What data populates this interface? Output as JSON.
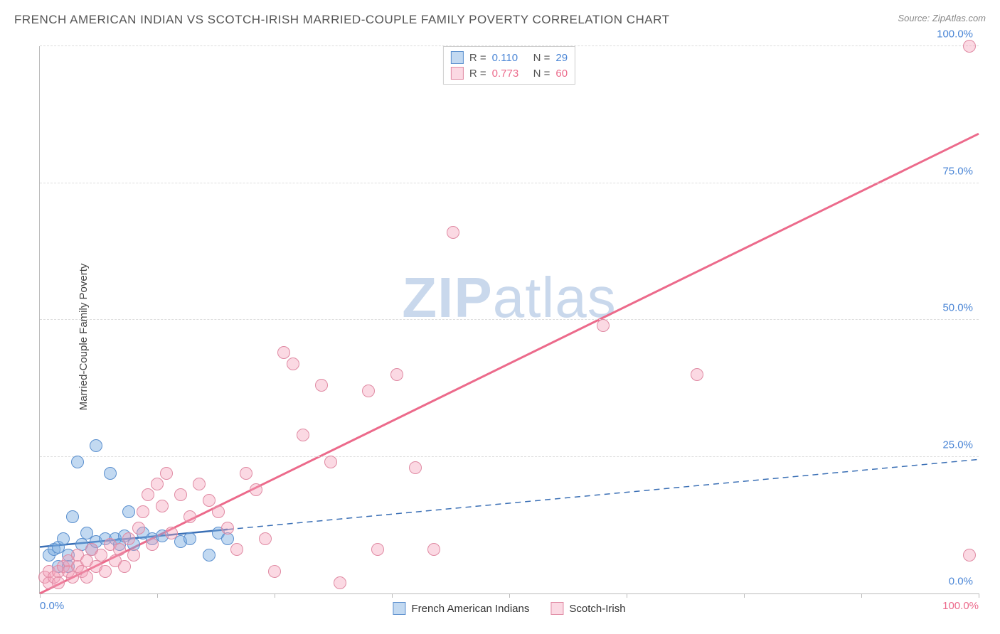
{
  "title": "FRENCH AMERICAN INDIAN VS SCOTCH-IRISH MARRIED-COUPLE FAMILY POVERTY CORRELATION CHART",
  "source": "Source: ZipAtlas.com",
  "ylabel": "Married-Couple Family Poverty",
  "watermark": {
    "bold": "ZIP",
    "rest": "atlas",
    "color": "#c9d8ec"
  },
  "chart": {
    "type": "scatter",
    "xlim": [
      0,
      100
    ],
    "ylim": [
      0,
      100
    ],
    "yticks": [
      {
        "v": 0,
        "label": "0.0%",
        "color": "#4b86d6"
      },
      {
        "v": 25,
        "label": "25.0%",
        "color": "#4b86d6"
      },
      {
        "v": 50,
        "label": "50.0%",
        "color": "#4b86d6"
      },
      {
        "v": 75,
        "label": "75.0%",
        "color": "#4b86d6"
      },
      {
        "v": 100,
        "label": "100.0%",
        "color": "#4b86d6"
      }
    ],
    "xticks": [
      0,
      12.5,
      25,
      37.5,
      50,
      62.5,
      75,
      87.5,
      100
    ],
    "xtick_labels": [
      {
        "v": 0,
        "label": "0.0%",
        "color": "#4b86d6"
      },
      {
        "v": 100,
        "label": "100.0%",
        "color": "#ec6a8b"
      }
    ],
    "background_color": "#ffffff",
    "grid_color": "#dddddd",
    "axis_color": "#bbbbbb"
  },
  "series": [
    {
      "key": "french_american_indians",
      "label": "French American Indians",
      "fill": "rgba(120,170,225,0.45)",
      "stroke": "#5a8fce",
      "marker_radius": 9,
      "stats": {
        "R": "0.110",
        "N": "29",
        "value_color": "#4b86d6"
      },
      "trendline": {
        "color": "#3a6fb5",
        "width": 2.5,
        "dash_after": 20,
        "x1": 0,
        "y1": 8.5,
        "x2": 100,
        "y2": 24.5
      },
      "points": [
        [
          1,
          7
        ],
        [
          1.5,
          8
        ],
        [
          2,
          5
        ],
        [
          2,
          8.5
        ],
        [
          2.5,
          10
        ],
        [
          3,
          7
        ],
        [
          3.5,
          14
        ],
        [
          3,
          5
        ],
        [
          4,
          24
        ],
        [
          4.5,
          9
        ],
        [
          5,
          11
        ],
        [
          5.5,
          8
        ],
        [
          6,
          27
        ],
        [
          6,
          9.5
        ],
        [
          7,
          10
        ],
        [
          7.5,
          22
        ],
        [
          8,
          10
        ],
        [
          8.5,
          9
        ],
        [
          9,
          10.5
        ],
        [
          9.5,
          15
        ],
        [
          10,
          9
        ],
        [
          11,
          11
        ],
        [
          12,
          10
        ],
        [
          13,
          10.5
        ],
        [
          15,
          9.5
        ],
        [
          16,
          10
        ],
        [
          18,
          7
        ],
        [
          19,
          11
        ],
        [
          20,
          10
        ]
      ]
    },
    {
      "key": "scotch_irish",
      "label": "Scotch-Irish",
      "fill": "rgba(245,160,185,0.40)",
      "stroke": "#e08aa3",
      "marker_radius": 9,
      "stats": {
        "R": "0.773",
        "N": "60",
        "value_color": "#ec6a8b"
      },
      "trendline": {
        "color": "#ec6a8b",
        "width": 3,
        "dash_after": null,
        "x1": 0,
        "y1": 0,
        "x2": 100,
        "y2": 84
      },
      "points": [
        [
          0.5,
          3
        ],
        [
          1,
          2
        ],
        [
          1,
          4
        ],
        [
          1.5,
          3
        ],
        [
          2,
          4
        ],
        [
          2,
          2
        ],
        [
          2.5,
          5
        ],
        [
          3,
          4
        ],
        [
          3,
          6
        ],
        [
          3.5,
          3
        ],
        [
          4,
          5
        ],
        [
          4,
          7
        ],
        [
          4.5,
          4
        ],
        [
          5,
          6
        ],
        [
          5,
          3
        ],
        [
          5.5,
          8
        ],
        [
          6,
          5
        ],
        [
          6.5,
          7
        ],
        [
          7,
          4
        ],
        [
          7.5,
          9
        ],
        [
          8,
          6
        ],
        [
          8.5,
          8
        ],
        [
          9,
          5
        ],
        [
          9.5,
          10
        ],
        [
          10,
          7
        ],
        [
          10.5,
          12
        ],
        [
          11,
          15
        ],
        [
          11.5,
          18
        ],
        [
          12,
          9
        ],
        [
          12.5,
          20
        ],
        [
          13,
          16
        ],
        [
          13.5,
          22
        ],
        [
          14,
          11
        ],
        [
          15,
          18
        ],
        [
          16,
          14
        ],
        [
          17,
          20
        ],
        [
          18,
          17
        ],
        [
          19,
          15
        ],
        [
          20,
          12
        ],
        [
          21,
          8
        ],
        [
          22,
          22
        ],
        [
          23,
          19
        ],
        [
          24,
          10
        ],
        [
          25,
          4
        ],
        [
          26,
          44
        ],
        [
          27,
          42
        ],
        [
          28,
          29
        ],
        [
          30,
          38
        ],
        [
          31,
          24
        ],
        [
          32,
          2
        ],
        [
          35,
          37
        ],
        [
          36,
          8
        ],
        [
          38,
          40
        ],
        [
          40,
          23
        ],
        [
          42,
          8
        ],
        [
          44,
          66
        ],
        [
          60,
          49
        ],
        [
          70,
          40
        ],
        [
          99,
          100
        ],
        [
          99,
          7
        ]
      ]
    }
  ],
  "stats_legend": {
    "R_label": "R =",
    "N_label": "N ="
  },
  "bottom_legend_order": [
    "french_american_indians",
    "scotch_irish"
  ]
}
